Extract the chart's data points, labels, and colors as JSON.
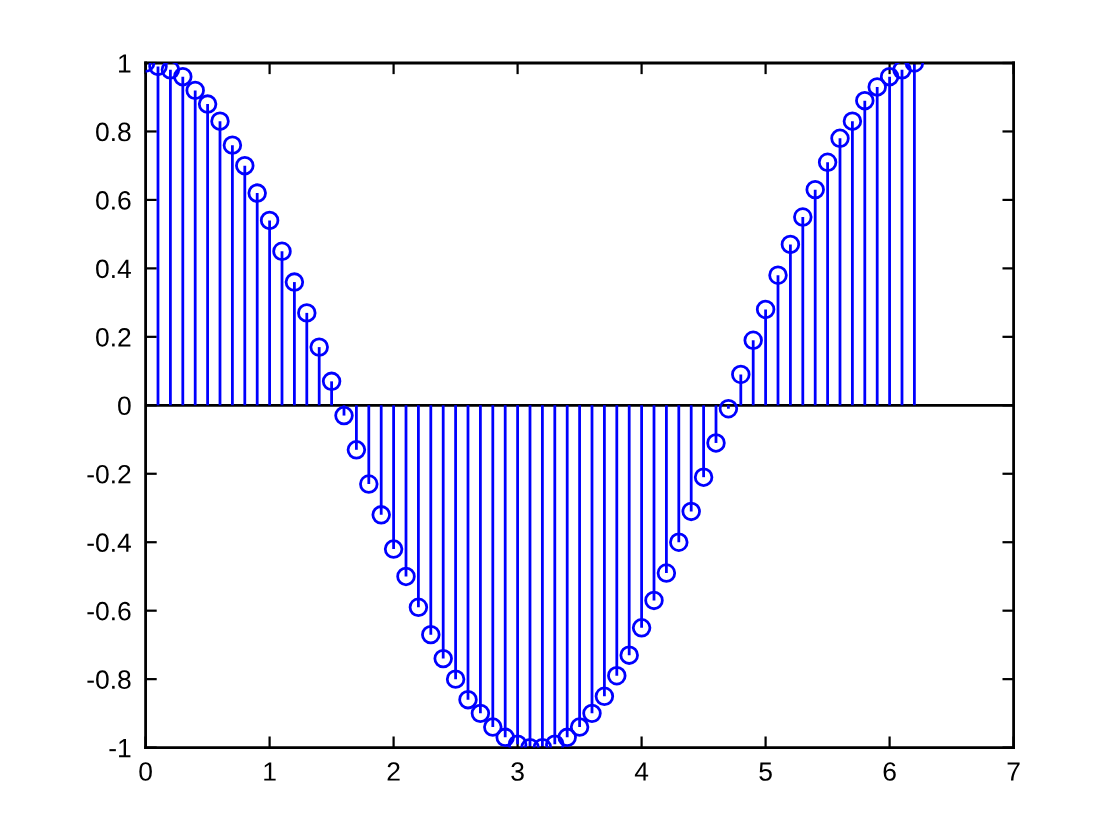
{
  "chart_data": {
    "type": "lollipop",
    "x": [
      0,
      0.1,
      0.2,
      0.3,
      0.4,
      0.5,
      0.6,
      0.7,
      0.8,
      0.9,
      1.0,
      1.1,
      1.2,
      1.3,
      1.4,
      1.5,
      1.6,
      1.7,
      1.8,
      1.9,
      2.0,
      2.1,
      2.2,
      2.3,
      2.4,
      2.5,
      2.6,
      2.7,
      2.8,
      2.9,
      3.0,
      3.1,
      3.2,
      3.3,
      3.4,
      3.5,
      3.6,
      3.7,
      3.8,
      3.9,
      4.0,
      4.1,
      4.2,
      4.3,
      4.4,
      4.5,
      4.6,
      4.7,
      4.8,
      4.9,
      5.0,
      5.1,
      5.2,
      5.3,
      5.4,
      5.5,
      5.6,
      5.7,
      5.8,
      5.9,
      6.0,
      6.1,
      6.2
    ],
    "values": [
      1.0,
      0.99,
      0.98,
      0.96,
      0.92,
      0.88,
      0.83,
      0.76,
      0.7,
      0.62,
      0.54,
      0.45,
      0.36,
      0.27,
      0.17,
      0.07,
      -0.03,
      -0.13,
      -0.23,
      -0.32,
      -0.42,
      -0.5,
      -0.59,
      -0.67,
      -0.74,
      -0.8,
      -0.86,
      -0.9,
      -0.94,
      -0.97,
      -0.99,
      -1.0,
      -1.0,
      -0.99,
      -0.97,
      -0.94,
      -0.9,
      -0.85,
      -0.79,
      -0.73,
      -0.65,
      -0.57,
      -0.49,
      -0.4,
      -0.31,
      -0.21,
      -0.11,
      -0.01,
      0.09,
      0.19,
      0.28,
      0.38,
      0.47,
      0.55,
      0.63,
      0.71,
      0.78,
      0.83,
      0.89,
      0.93,
      0.96,
      0.98,
      1.0
    ],
    "color": "#0000ff",
    "marker": "circle",
    "xlim": [
      0,
      7
    ],
    "ylim": [
      -1,
      1
    ],
    "xticks": [
      0,
      1,
      2,
      3,
      4,
      5,
      6,
      7
    ],
    "yticks": [
      -1,
      -0.8,
      -0.6,
      -0.4,
      -0.2,
      0,
      0.2,
      0.4,
      0.6,
      0.8,
      1
    ],
    "ref_lines": [
      {
        "axis": "y",
        "value": 0,
        "color": "#000000"
      }
    ]
  }
}
